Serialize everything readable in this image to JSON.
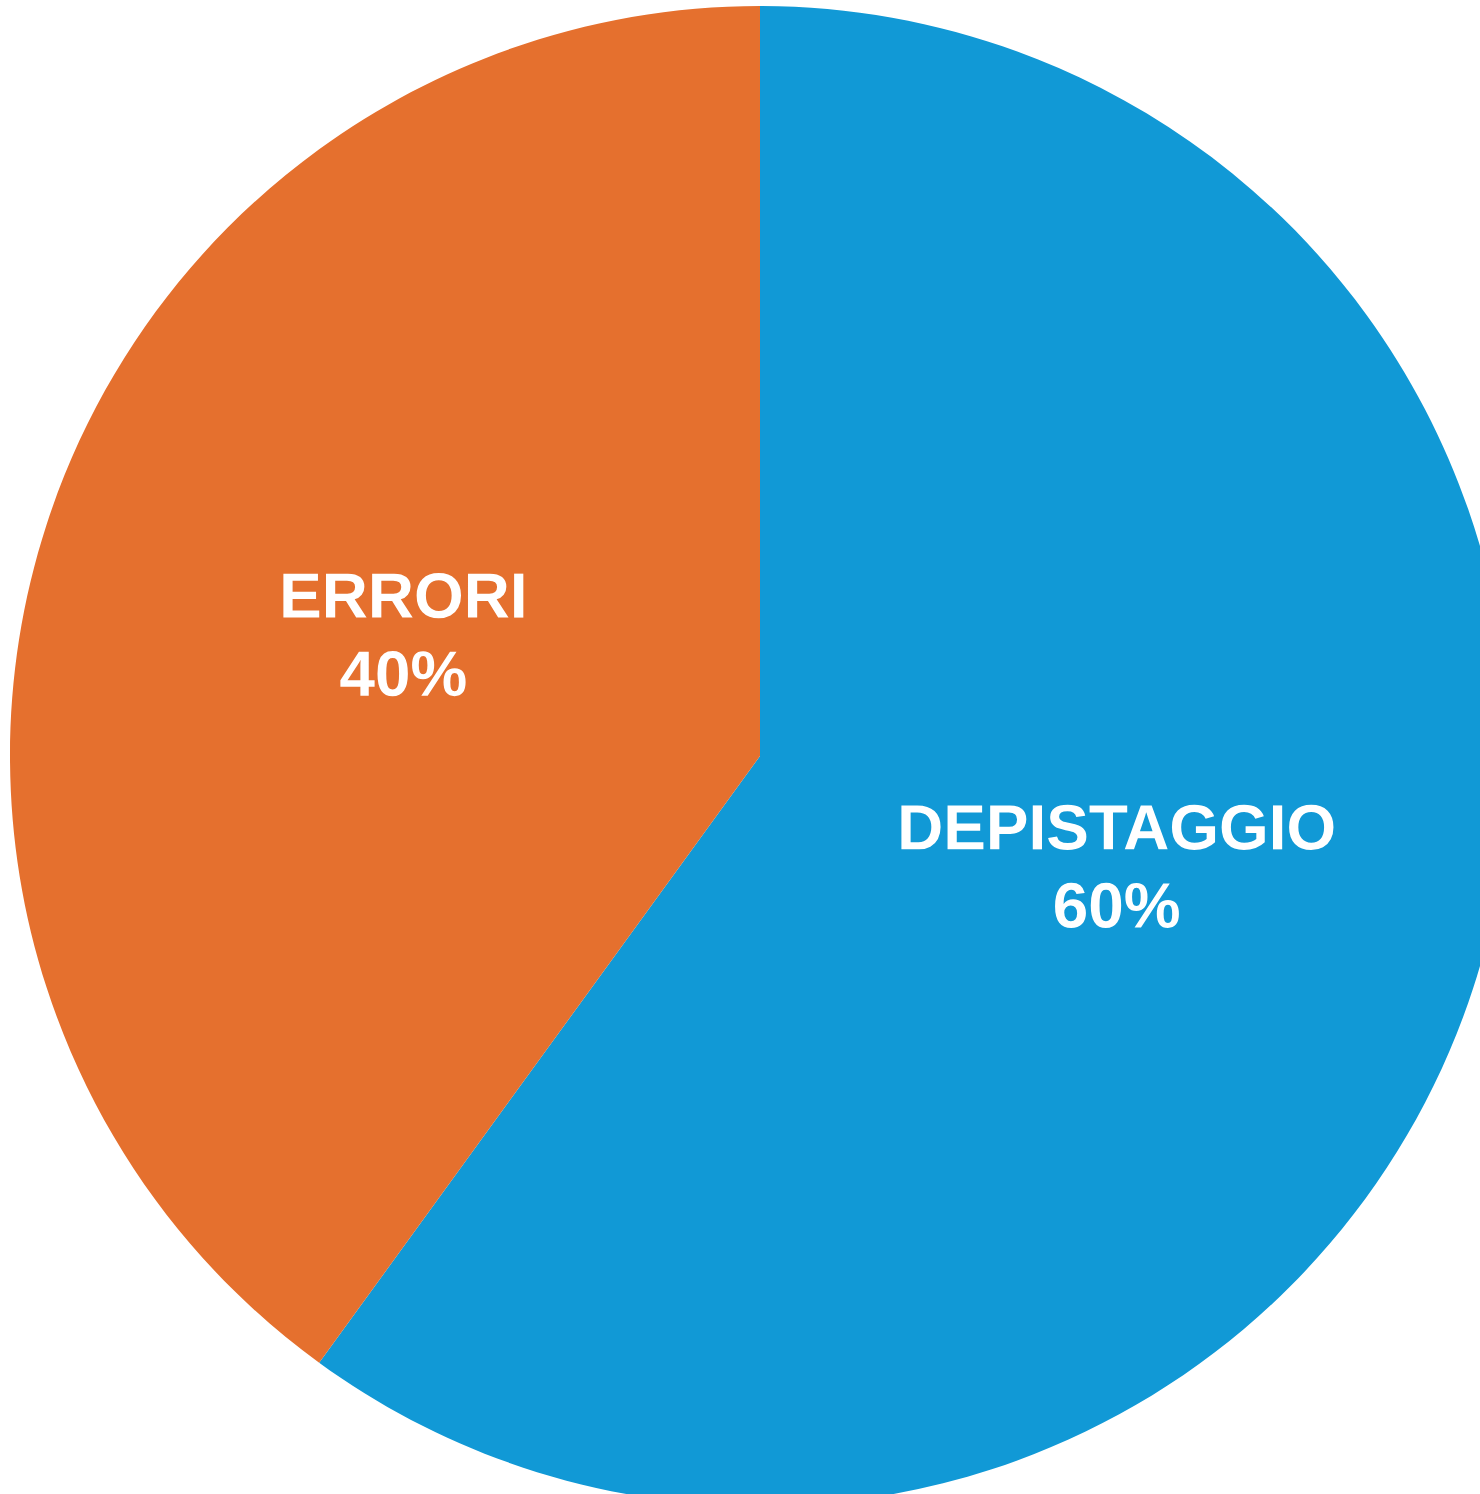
{
  "chart_data": {
    "type": "pie",
    "categories": [
      "DEPISTAGGIO",
      "ERRORI"
    ],
    "values": [
      60,
      40
    ],
    "colors": [
      "#1199d6",
      "#e5702e"
    ],
    "value_labels": [
      "60%",
      "40%"
    ]
  }
}
